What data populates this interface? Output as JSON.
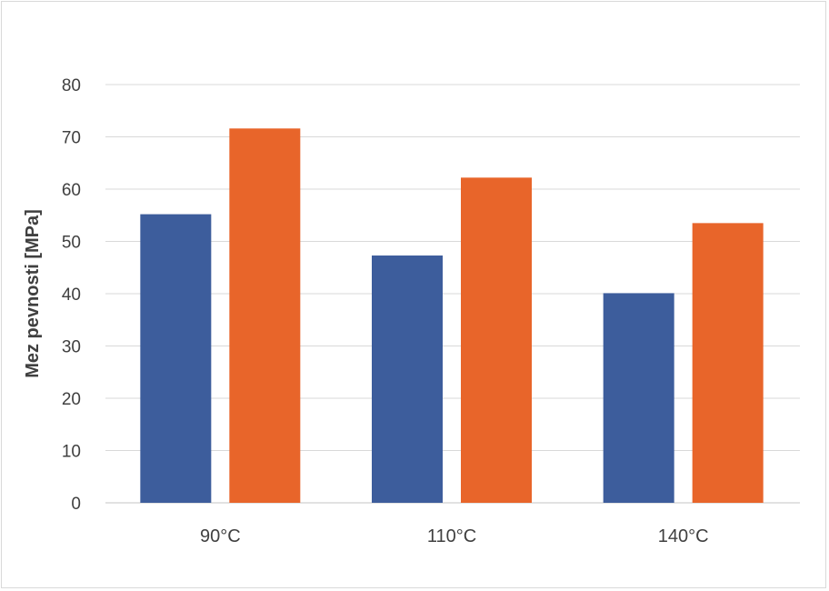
{
  "chart_data": {
    "type": "bar",
    "categories": [
      "90°C",
      "110°C",
      "140°C"
    ],
    "series": [
      {
        "values": [
          55.2,
          47.3,
          40.1
        ],
        "color": "#3d5d9c"
      },
      {
        "values": [
          71.6,
          62.2,
          53.5
        ],
        "color": "#e8652a"
      }
    ],
    "ylabel": "Mez pevnosti [MPa]",
    "ylim": [
      0,
      80
    ],
    "yticks": [
      0,
      10,
      20,
      30,
      40,
      50,
      60,
      70,
      80
    ],
    "grid": true,
    "gridColor": "#d9d9d9"
  }
}
